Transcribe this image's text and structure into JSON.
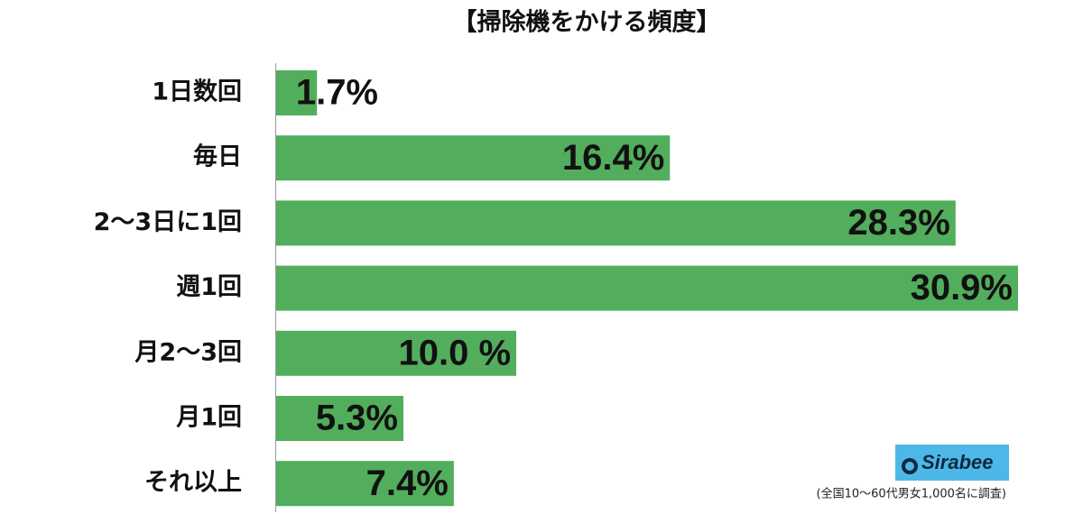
{
  "chart_data": {
    "type": "bar",
    "orientation": "horizontal",
    "title": "【掃除機をかける頻度】",
    "categories": [
      "1日数回",
      "毎日",
      "2〜3日に1回",
      "週1回",
      "月2〜3回",
      "月1回",
      "それ以上"
    ],
    "values": [
      1.7,
      16.4,
      28.3,
      30.9,
      10.0,
      5.3,
      7.4
    ],
    "value_labels": [
      "1.7%",
      "16.4%",
      "28.3%",
      "30.9%",
      "10.0 %",
      "5.3%",
      "7.4%"
    ],
    "color": "#52ae5c",
    "logo": "Sirabee",
    "note": "(全国10〜60代男女1,000名に調査)"
  }
}
